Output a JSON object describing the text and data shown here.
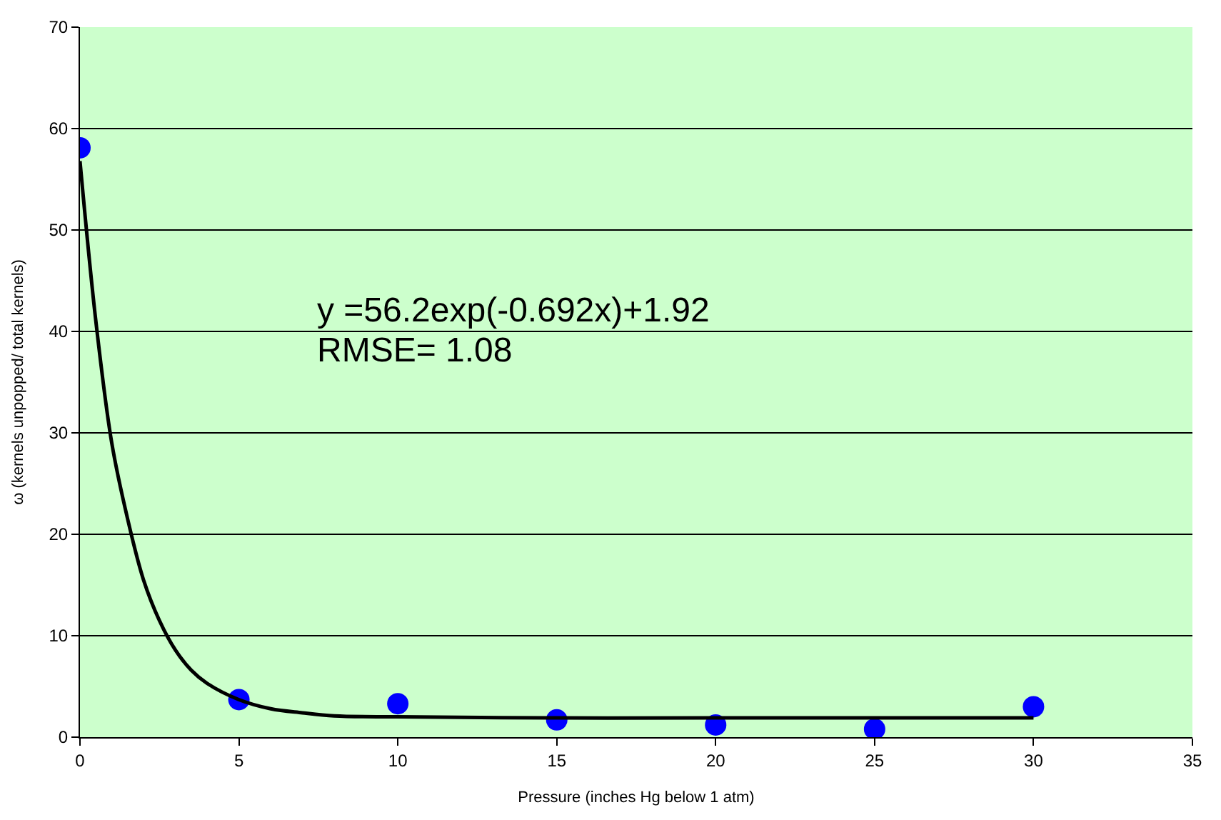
{
  "chart_data": {
    "type": "scatter",
    "xlabel": "Pressure (inches Hg below 1 atm)",
    "ylabel": "ω (kernels unpopped/ total kernels)",
    "x": [
      0,
      5,
      10,
      15,
      20,
      25,
      30
    ],
    "series": [
      {
        "color": "#0000ff",
        "marker": "circle",
        "values": [
          58.1,
          3.7,
          3.3,
          1.7,
          1.2,
          0.8,
          3.0
        ]
      },
      {
        "type": "line",
        "color": "#000000",
        "marker": "none",
        "line_style": "solid",
        "x": [
          0,
          0.5,
          1,
          1.5,
          2,
          2.5,
          3,
          3.5,
          4,
          5,
          6,
          7,
          8,
          10,
          15,
          20,
          30
        ],
        "values": [
          56.8,
          41,
          29,
          21.5,
          15.5,
          11.5,
          8.6,
          6.6,
          5.3,
          3.7,
          2.8,
          2.4,
          2.1,
          2.0,
          1.9,
          1.9,
          1.9
        ]
      }
    ],
    "xlim": [
      0,
      35
    ],
    "xticks": [
      0,
      5,
      10,
      15,
      20,
      25,
      30,
      35
    ],
    "ylim": [
      0,
      70
    ],
    "yticks": [
      0,
      10,
      20,
      30,
      40,
      50,
      60,
      70
    ],
    "grid": "y",
    "annotations": [
      "y =56.2exp(-0.692x)+1.92",
      "RMSE= 1.08"
    ]
  }
}
